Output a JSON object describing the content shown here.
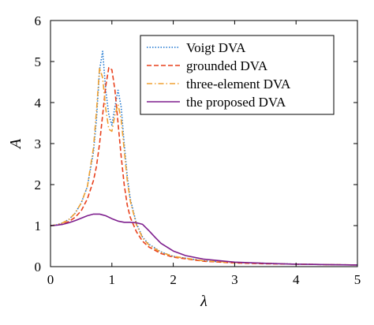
{
  "chart_data": {
    "type": "line",
    "xlabel": "λ",
    "ylabel": "A",
    "xlim": [
      0,
      5
    ],
    "ylim": [
      0,
      6
    ],
    "xticks": [
      "0",
      "1",
      "2",
      "3",
      "4",
      "5"
    ],
    "yticks": [
      "0",
      "1",
      "2",
      "3",
      "4",
      "5",
      "6"
    ],
    "grid": false,
    "legend_position": "top-right",
    "series": [
      {
        "name": "Voigt DVA",
        "color": "#1f77d0",
        "dash": "dotted",
        "x": [
          0,
          0.1,
          0.2,
          0.3,
          0.4,
          0.5,
          0.6,
          0.7,
          0.75,
          0.8,
          0.85,
          0.9,
          0.95,
          1.0,
          1.05,
          1.1,
          1.15,
          1.2,
          1.25,
          1.3,
          1.4,
          1.5,
          1.6,
          1.8,
          2.0,
          2.5,
          3.0,
          3.5,
          4.0,
          4.5,
          5.0
        ],
        "y": [
          1.0,
          1.02,
          1.07,
          1.15,
          1.3,
          1.55,
          1.95,
          2.8,
          3.6,
          4.8,
          5.25,
          4.3,
          3.7,
          3.45,
          3.9,
          4.3,
          3.9,
          3.0,
          2.2,
          1.65,
          1.05,
          0.72,
          0.55,
          0.36,
          0.25,
          0.14,
          0.1,
          0.08,
          0.06,
          0.05,
          0.04
        ]
      },
      {
        "name": "grounded DVA",
        "color": "#e8401c",
        "dash": "dashed",
        "x": [
          0,
          0.1,
          0.2,
          0.3,
          0.4,
          0.5,
          0.6,
          0.7,
          0.75,
          0.8,
          0.85,
          0.9,
          0.95,
          1.0,
          1.05,
          1.1,
          1.15,
          1.2,
          1.25,
          1.3,
          1.4,
          1.5,
          1.6,
          1.8,
          2.0,
          2.5,
          3.0,
          3.5,
          4.0,
          4.5,
          5.0
        ],
        "y": [
          1.0,
          1.01,
          1.04,
          1.1,
          1.2,
          1.36,
          1.65,
          2.1,
          2.45,
          3.0,
          3.7,
          4.4,
          4.85,
          4.8,
          4.3,
          3.5,
          2.7,
          2.0,
          1.5,
          1.2,
          0.85,
          0.62,
          0.48,
          0.32,
          0.23,
          0.13,
          0.09,
          0.07,
          0.06,
          0.05,
          0.04
        ]
      },
      {
        "name": "three-element DVA",
        "color": "#f0a030",
        "dash": "dashdot",
        "x": [
          0,
          0.1,
          0.2,
          0.3,
          0.4,
          0.5,
          0.6,
          0.7,
          0.75,
          0.8,
          0.85,
          0.9,
          0.95,
          1.0,
          1.05,
          1.1,
          1.15,
          1.2,
          1.25,
          1.3,
          1.4,
          1.5,
          1.6,
          1.8,
          2.0,
          2.5,
          3.0,
          3.5,
          4.0,
          4.5,
          5.0
        ],
        "y": [
          1.0,
          1.02,
          1.07,
          1.15,
          1.3,
          1.55,
          1.95,
          2.9,
          3.8,
          4.85,
          4.6,
          3.85,
          3.35,
          3.3,
          3.7,
          3.95,
          3.6,
          2.85,
          2.1,
          1.6,
          1.02,
          0.7,
          0.53,
          0.35,
          0.25,
          0.14,
          0.1,
          0.08,
          0.06,
          0.05,
          0.04
        ]
      },
      {
        "name": "the proposed DVA",
        "color": "#7e1f8e",
        "dash": "solid",
        "x": [
          0,
          0.1,
          0.2,
          0.3,
          0.4,
          0.5,
          0.6,
          0.7,
          0.8,
          0.9,
          1.0,
          1.1,
          1.2,
          1.3,
          1.4,
          1.5,
          1.6,
          1.7,
          1.8,
          2.0,
          2.2,
          2.5,
          3.0,
          3.5,
          4.0,
          4.5,
          5.0
        ],
        "y": [
          1.0,
          1.01,
          1.03,
          1.07,
          1.12,
          1.18,
          1.24,
          1.28,
          1.28,
          1.24,
          1.17,
          1.11,
          1.08,
          1.08,
          1.07,
          1.03,
          0.88,
          0.72,
          0.57,
          0.38,
          0.27,
          0.18,
          0.11,
          0.08,
          0.06,
          0.05,
          0.04
        ]
      }
    ]
  }
}
